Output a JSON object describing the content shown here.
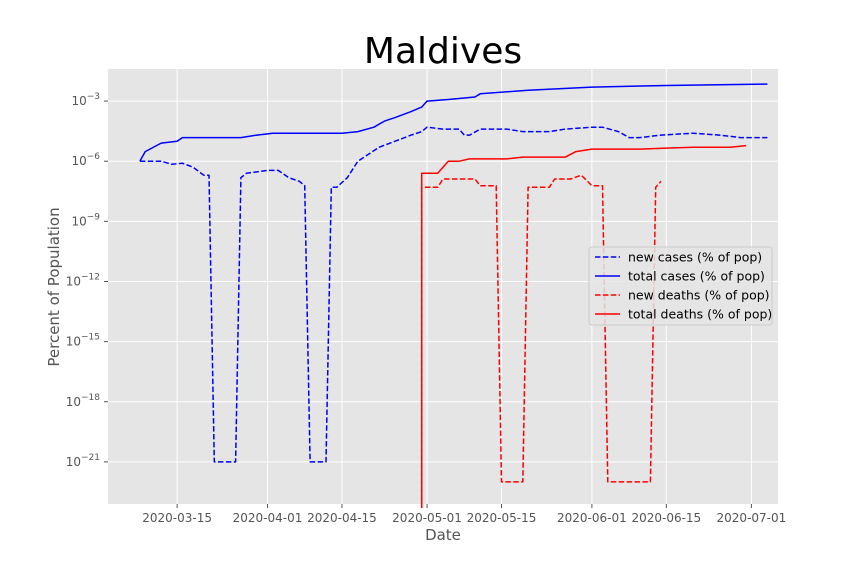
{
  "chart_data": {
    "type": "line",
    "title": "Maldives",
    "xlabel": "Date",
    "ylabel": "Percent of Population",
    "yscale": "log",
    "ylim_exponents": [
      -23.1,
      -1.4
    ],
    "xlim": [
      "2020-03-02",
      "2020-07-06"
    ],
    "grid": true,
    "legend_position": "center-right",
    "x_ticks": [
      "2020-03-15",
      "2020-04-01",
      "2020-04-15",
      "2020-05-01",
      "2020-05-15",
      "2020-06-01",
      "2020-06-15",
      "2020-07-01"
    ],
    "y_ticks": [
      {
        "exp": -3,
        "base": "10",
        "power": "−3"
      },
      {
        "exp": -6,
        "base": "10",
        "power": "−6"
      },
      {
        "exp": -9,
        "base": "10",
        "power": "−9"
      },
      {
        "exp": -12,
        "base": "10",
        "power": "−12"
      },
      {
        "exp": -15,
        "base": "10",
        "power": "−15"
      },
      {
        "exp": -18,
        "base": "10",
        "power": "−18"
      },
      {
        "exp": -21,
        "base": "10",
        "power": "−21"
      }
    ],
    "series": [
      {
        "name": "new cases (% of pop)",
        "color": "#0000ff",
        "dash": true,
        "points": [
          [
            "2020-03-08",
            1e-06
          ],
          [
            "2020-03-12",
            1e-06
          ],
          [
            "2020-03-14",
            7e-07
          ],
          [
            "2020-03-16",
            8e-07
          ],
          [
            "2020-03-18",
            5e-07
          ],
          [
            "2020-03-20",
            2e-07
          ],
          [
            "2020-03-21",
            2e-07
          ],
          [
            "2020-03-22",
            1e-21
          ],
          [
            "2020-03-26",
            1e-21
          ],
          [
            "2020-03-27",
            1.5e-07
          ],
          [
            "2020-03-28",
            2.5e-07
          ],
          [
            "2020-04-01",
            3.5e-07
          ],
          [
            "2020-04-03",
            3.5e-07
          ],
          [
            "2020-04-05",
            1.5e-07
          ],
          [
            "2020-04-07",
            1e-07
          ],
          [
            "2020-04-08",
            6e-08
          ],
          [
            "2020-04-09",
            1e-21
          ],
          [
            "2020-04-12",
            1e-21
          ],
          [
            "2020-04-13",
            5e-08
          ],
          [
            "2020-04-14",
            5e-08
          ],
          [
            "2020-04-16",
            1.5e-07
          ],
          [
            "2020-04-18",
            1e-06
          ],
          [
            "2020-04-22",
            5e-06
          ],
          [
            "2020-04-25",
            1e-05
          ],
          [
            "2020-04-28",
            2e-05
          ],
          [
            "2020-04-30",
            3e-05
          ],
          [
            "2020-05-01",
            5e-05
          ],
          [
            "2020-05-04",
            4e-05
          ],
          [
            "2020-05-07",
            4e-05
          ],
          [
            "2020-05-08",
            2e-05
          ],
          [
            "2020-05-09",
            2e-05
          ],
          [
            "2020-05-11",
            4e-05
          ],
          [
            "2020-05-16",
            4e-05
          ],
          [
            "2020-05-19",
            3e-05
          ],
          [
            "2020-05-24",
            3e-05
          ],
          [
            "2020-05-27",
            4e-05
          ],
          [
            "2020-06-01",
            5e-05
          ],
          [
            "2020-06-03",
            5e-05
          ],
          [
            "2020-06-06",
            3e-05
          ],
          [
            "2020-06-08",
            1.5e-05
          ],
          [
            "2020-06-10",
            1.5e-05
          ],
          [
            "2020-06-14",
            2e-05
          ],
          [
            "2020-06-20",
            2.5e-05
          ],
          [
            "2020-06-25",
            2e-05
          ],
          [
            "2020-06-29",
            1.5e-05
          ],
          [
            "2020-07-04",
            1.5e-05
          ]
        ]
      },
      {
        "name": "total cases (% of pop)",
        "color": "#0000ff",
        "dash": false,
        "points": [
          [
            "2020-03-08",
            1e-06
          ],
          [
            "2020-03-09",
            3e-06
          ],
          [
            "2020-03-12",
            8e-06
          ],
          [
            "2020-03-15",
            1e-05
          ],
          [
            "2020-03-16",
            1.5e-05
          ],
          [
            "2020-03-27",
            1.5e-05
          ],
          [
            "2020-03-30",
            2e-05
          ],
          [
            "2020-04-02",
            2.5e-05
          ],
          [
            "2020-04-15",
            2.5e-05
          ],
          [
            "2020-04-18",
            3e-05
          ],
          [
            "2020-04-21",
            5e-05
          ],
          [
            "2020-04-23",
            0.0001
          ],
          [
            "2020-04-25",
            0.00015
          ],
          [
            "2020-04-28",
            0.0003
          ],
          [
            "2020-04-30",
            0.0005
          ],
          [
            "2020-05-01",
            0.001
          ],
          [
            "2020-05-05",
            0.0012
          ],
          [
            "2020-05-10",
            0.0016
          ],
          [
            "2020-05-11",
            0.0023
          ],
          [
            "2020-05-20",
            0.0035
          ],
          [
            "2020-06-01",
            0.005
          ],
          [
            "2020-06-15",
            0.006
          ],
          [
            "2020-07-04",
            0.007
          ]
        ]
      },
      {
        "name": "new deaths (% of pop)",
        "color": "#ff0000",
        "dash": true,
        "points": [
          [
            "2020-04-30",
            5e-24
          ],
          [
            "2020-04-30",
            5e-08
          ],
          [
            "2020-05-03",
            5e-08
          ],
          [
            "2020-05-04",
            1.3e-07
          ],
          [
            "2020-05-10",
            1.3e-07
          ],
          [
            "2020-05-11",
            6e-08
          ],
          [
            "2020-05-14",
            6e-08
          ],
          [
            "2020-05-15",
            1e-22
          ],
          [
            "2020-05-19",
            1e-22
          ],
          [
            "2020-05-20",
            5e-08
          ],
          [
            "2020-05-24",
            5e-08
          ],
          [
            "2020-05-25",
            1.3e-07
          ],
          [
            "2020-05-28",
            1.3e-07
          ],
          [
            "2020-05-30",
            2e-07
          ],
          [
            "2020-06-01",
            6e-08
          ],
          [
            "2020-06-03",
            6e-08
          ],
          [
            "2020-06-04",
            1e-22
          ],
          [
            "2020-06-12",
            1e-22
          ],
          [
            "2020-06-13",
            5e-08
          ],
          [
            "2020-06-14",
            1e-07
          ]
        ]
      },
      {
        "name": "total deaths (% of pop)",
        "color": "#ff0000",
        "dash": false,
        "points": [
          [
            "2020-04-30",
            5e-24
          ],
          [
            "2020-04-30",
            2.5e-07
          ],
          [
            "2020-05-03",
            2.5e-07
          ],
          [
            "2020-05-05",
            1e-06
          ],
          [
            "2020-05-07",
            1e-06
          ],
          [
            "2020-05-09",
            1.3e-06
          ],
          [
            "2020-05-16",
            1.3e-06
          ],
          [
            "2020-05-19",
            1.6e-06
          ],
          [
            "2020-05-27",
            1.6e-06
          ],
          [
            "2020-05-29",
            3e-06
          ],
          [
            "2020-06-01",
            4e-06
          ],
          [
            "2020-06-10",
            4e-06
          ],
          [
            "2020-06-15",
            4.5e-06
          ],
          [
            "2020-06-20",
            5e-06
          ],
          [
            "2020-06-27",
            5e-06
          ],
          [
            "2020-06-30",
            6e-06
          ]
        ]
      }
    ]
  }
}
